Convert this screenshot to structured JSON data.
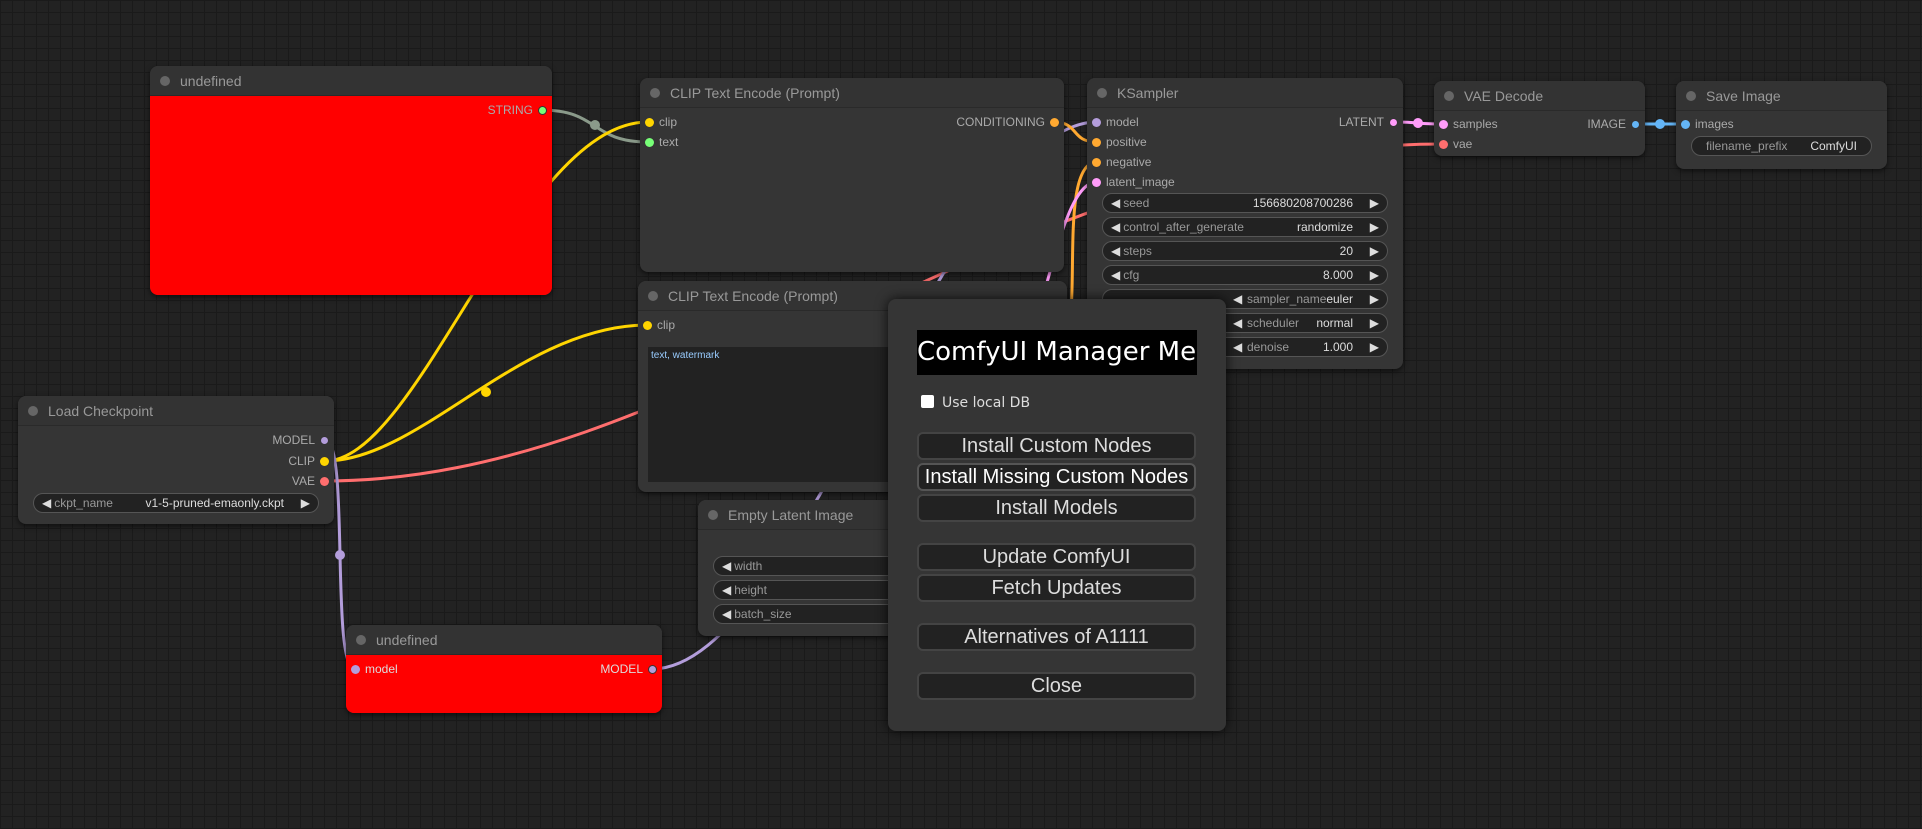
{
  "colors": {
    "model": "#b39ddb",
    "clip": "#ffd500",
    "vae": "#ff6e6e",
    "conditioning": "#ffa931",
    "latent": "#ff9cf9",
    "image": "#64b5f6",
    "string": "#77ff77",
    "error_node": "#ff0000"
  },
  "nodes": {
    "primitive_top": {
      "title": "undefined",
      "output": "STRING"
    },
    "clip_pos": {
      "title": "CLIP Text Encode (Prompt)",
      "inputs": [
        "clip",
        "text"
      ],
      "output": "CONDITIONING"
    },
    "clip_neg": {
      "title": "CLIP Text Encode (Prompt)",
      "inputs": [
        "clip"
      ],
      "text": "text, watermark"
    },
    "ksampler": {
      "title": "KSampler",
      "inputs": [
        "model",
        "positive",
        "negative",
        "latent_image"
      ],
      "output": "LATENT",
      "widgets": [
        {
          "name": "seed",
          "value": "156680208700286"
        },
        {
          "name": "control_after_generate",
          "value": "randomize"
        },
        {
          "name": "steps",
          "value": "20"
        },
        {
          "name": "cfg",
          "value": "8.000"
        },
        {
          "name": "sampler_name",
          "value": "euler"
        },
        {
          "name": "scheduler",
          "value": "normal"
        },
        {
          "name": "denoise",
          "value": "1.000"
        }
      ]
    },
    "vae_decode": {
      "title": "VAE Decode",
      "inputs": [
        "samples",
        "vae"
      ],
      "output": "IMAGE"
    },
    "save_image": {
      "title": "Save Image",
      "input": "images",
      "widget": {
        "name": "filename_prefix",
        "value": "ComfyUI"
      }
    },
    "load_checkpoint": {
      "title": "Load Checkpoint",
      "outputs": [
        "MODEL",
        "CLIP",
        "VAE"
      ],
      "widget": {
        "name": "ckpt_name",
        "value": "v1-5-pruned-emaonly.ckpt"
      }
    },
    "empty_latent": {
      "title": "Empty Latent Image",
      "widgets": [
        "width",
        "height",
        "batch_size"
      ]
    },
    "undefined_model": {
      "title": "undefined",
      "input": "model",
      "output": "MODEL"
    }
  },
  "manager": {
    "title": "ComfyUI Manager Menu",
    "use_local_db": "Use local DB",
    "use_local_db_checked": false,
    "buttons": [
      "Install Custom Nodes",
      "Install Missing Custom Nodes",
      "Install Models",
      "Update ComfyUI",
      "Fetch Updates",
      "Alternatives of A1111",
      "Close"
    ]
  },
  "arrows": {
    "left": "◀",
    "right": "▶"
  }
}
